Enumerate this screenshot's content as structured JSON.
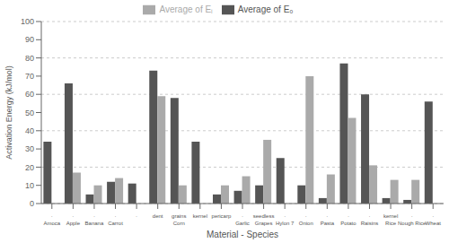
{
  "chart_data": {
    "type": "bar",
    "categories": [
      [
        "·",
        "Amoca"
      ],
      [
        "·",
        "Apple"
      ],
      [
        "·",
        "Banana"
      ],
      [
        "·",
        "Carrot"
      ],
      [
        "·"
      ],
      [
        "dent"
      ],
      [
        "grains",
        "Corn"
      ],
      [
        "kernel"
      ],
      [
        "pericarp"
      ],
      [
        "·",
        "Garlic"
      ],
      [
        "seedless",
        "Grapes"
      ],
      [
        "·",
        "Hylon 7"
      ],
      [
        "·",
        "Onion"
      ],
      [
        "·",
        "Pasta"
      ],
      [
        "·",
        "Potato"
      ],
      [
        "·",
        "Raisins"
      ],
      [
        "kernel",
        "Rice"
      ],
      [
        "·",
        "Nough Rice"
      ],
      [
        "·",
        "Wheat"
      ]
    ],
    "series": [
      {
        "name": "Average of E₀",
        "color": "#555555",
        "values": [
          34,
          66,
          5,
          12,
          11,
          73,
          58,
          34,
          5,
          7,
          10,
          25,
          10,
          3,
          77,
          60,
          3,
          2,
          56
        ]
      },
      {
        "name": "Average of Eᵢ",
        "color": "#aaaaaa",
        "values": [
          0,
          17,
          10,
          14,
          0,
          59,
          10,
          0,
          10,
          15,
          35,
          0,
          70,
          16,
          47,
          21,
          13,
          13,
          0
        ]
      }
    ],
    "xlabel": "Material - Species",
    "ylabel": "Activation Energy (kJ/mol)",
    "ylim": [
      0,
      100
    ],
    "yticks": [
      0,
      10,
      20,
      30,
      40,
      50,
      60,
      70,
      80,
      90,
      100
    ],
    "grid": true,
    "legend": "top"
  }
}
